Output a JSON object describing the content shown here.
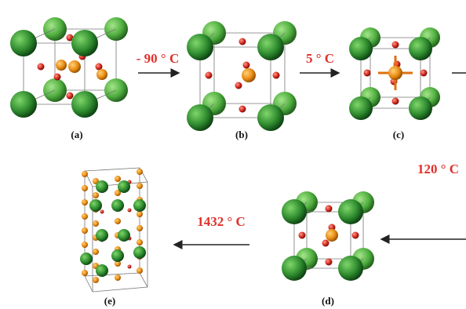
{
  "panels": [
    {
      "label": "(a)"
    },
    {
      "label": "(b)"
    },
    {
      "label": "(c)"
    },
    {
      "label": "(d)"
    },
    {
      "label": "(e)"
    }
  ],
  "transitions": [
    {
      "label": "- 90 ° C"
    },
    {
      "label": "5 ° C"
    },
    {
      "label": "120 ° C"
    },
    {
      "label": "1432 ° C"
    }
  ]
}
